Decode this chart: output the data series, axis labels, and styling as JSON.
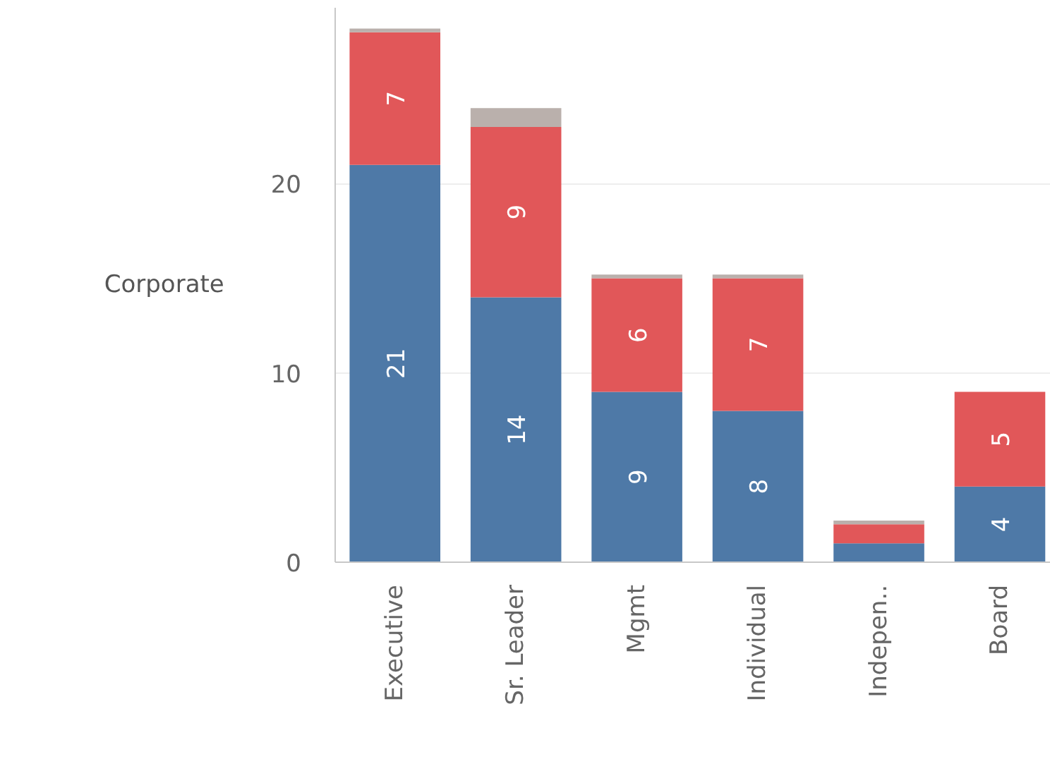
{
  "chart_data": {
    "type": "bar",
    "stacked": true,
    "ylabel": "Corporate",
    "categories": [
      "Executive",
      "Sr. Leader",
      "Mgmt",
      "Individual",
      "Indepen..",
      "Board"
    ],
    "series": [
      {
        "color": "#4e79a7",
        "values": [
          21,
          14,
          9,
          8,
          1,
          4
        ],
        "value_labels": [
          "21",
          "14",
          "9",
          "8",
          null,
          "4"
        ]
      },
      {
        "color": "#e15759",
        "values": [
          7,
          9,
          6,
          7,
          1,
          5
        ],
        "value_labels": [
          "7",
          "9",
          "6",
          "7",
          null,
          "5"
        ]
      },
      {
        "color": "#bab0ac",
        "values": [
          0.2,
          1,
          0.2,
          0.2,
          0.2,
          null
        ]
      }
    ],
    "ylim": [
      0,
      29.3
    ],
    "yticks": [
      0,
      10,
      20
    ],
    "grid": "y"
  }
}
